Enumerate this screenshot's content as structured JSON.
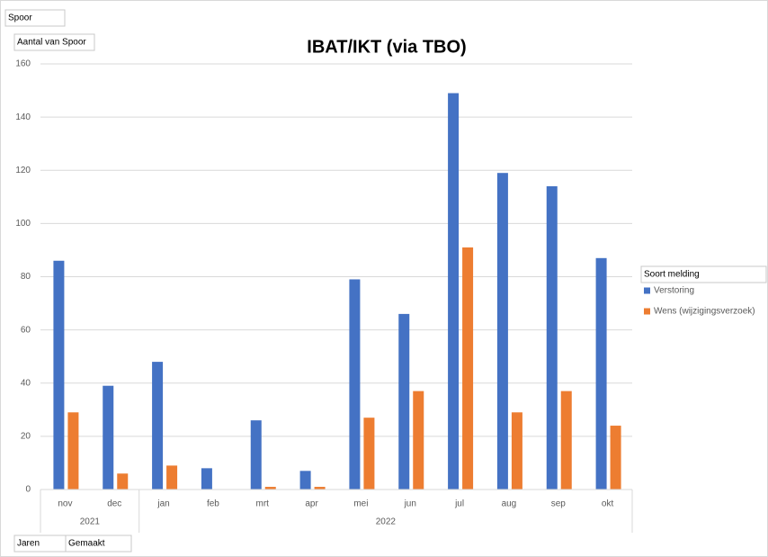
{
  "chart_data": {
    "type": "bar",
    "title": "IBAT/IKT (via TBO)",
    "field_buttons": {
      "filter": "Spoor",
      "value": "Aantal van Spoor",
      "axis": [
        "Jaren",
        "Gemaakt"
      ]
    },
    "categories": [
      "nov",
      "dec",
      "jan",
      "feb",
      "mrt",
      "apr",
      "mei",
      "jun",
      "jul",
      "aug",
      "sep",
      "okt"
    ],
    "groups": [
      {
        "label": "2021",
        "count": 2
      },
      {
        "label": "2022",
        "count": 10
      }
    ],
    "legend_title": "Soort melding",
    "legend": "right",
    "series": [
      {
        "name": "Verstoring",
        "color": "#4472c4",
        "values": [
          86,
          39,
          48,
          8,
          26,
          7,
          79,
          66,
          149,
          119,
          114,
          87
        ]
      },
      {
        "name": "Wens (wijzigingsverzoek)",
        "color": "#ed7d31",
        "values": [
          29,
          6,
          9,
          null,
          1,
          1,
          27,
          37,
          91,
          29,
          37,
          24
        ]
      }
    ],
    "ylim": [
      0,
      160
    ],
    "yticks": [
      0,
      20,
      40,
      60,
      80,
      100,
      120,
      140,
      160
    ],
    "grid": true
  }
}
